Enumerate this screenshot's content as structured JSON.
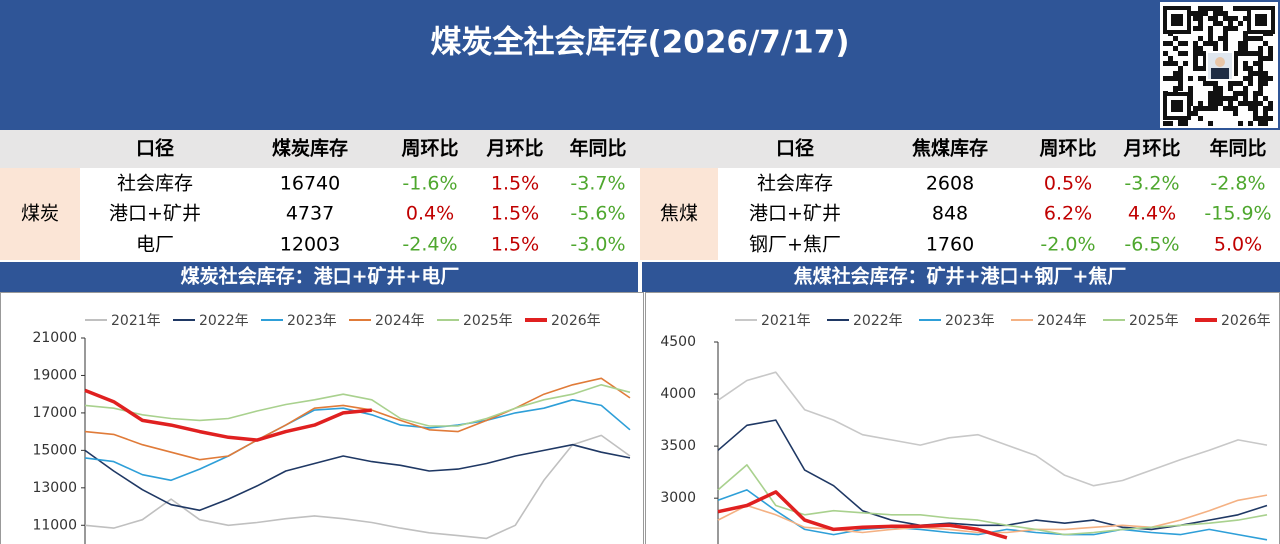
{
  "header": {
    "title": "煤炭全社会库存(2026/7/17)"
  },
  "tables": [
    {
      "group": "煤炭",
      "columns": [
        "口径",
        "煤炭库存",
        "周环比",
        "月环比",
        "年同比"
      ],
      "rows": [
        [
          "社会库存",
          "16740",
          "-1.6%",
          "1.5%",
          "-3.7%"
        ],
        [
          "港口+矿井",
          "4737",
          "0.4%",
          "1.5%",
          "-5.6%"
        ],
        [
          "电厂",
          "12003",
          "-2.4%",
          "1.5%",
          "-3.0%"
        ]
      ]
    },
    {
      "group": "焦煤",
      "columns": [
        "口径",
        "焦煤库存",
        "周环比",
        "月环比",
        "年同比"
      ],
      "rows": [
        [
          "社会库存",
          "2608",
          "0.5%",
          "-3.2%",
          "-2.8%"
        ],
        [
          "港口+矿井",
          "848",
          "6.2%",
          "4.4%",
          "-15.9%"
        ],
        [
          "钢厂+焦厂",
          "1760",
          "-2.0%",
          "-6.5%",
          "5.0%"
        ]
      ]
    }
  ],
  "chart_data": [
    {
      "type": "line",
      "title": "煤炭社会库存：港口+矿井+电厂",
      "ylim": [
        10000,
        21000
      ],
      "yticks": [
        11000,
        13000,
        15000,
        17000,
        19000,
        21000
      ],
      "series": [
        {
          "name": "2021年",
          "color": "#c0c0c0",
          "values": [
            11000,
            10850,
            11300,
            12400,
            11300,
            11000,
            11150,
            11350,
            11500,
            11350,
            11150,
            10850,
            10600,
            10450,
            10300,
            11000,
            13400,
            15300,
            15800,
            14700
          ]
        },
        {
          "name": "2022年",
          "color": "#1f3864",
          "values": [
            15000,
            13900,
            12900,
            12100,
            11800,
            12400,
            13100,
            13900,
            14300,
            14700,
            14400,
            14200,
            13900,
            14000,
            14300,
            14700,
            15000,
            15300,
            14900,
            14600
          ]
        },
        {
          "name": "2023年",
          "color": "#2e9fd8",
          "values": [
            14600,
            14400,
            13700,
            13400,
            14000,
            14700,
            15550,
            16350,
            17150,
            17250,
            16900,
            16350,
            16200,
            16350,
            16600,
            17000,
            17250,
            17700,
            17400,
            16100
          ]
        },
        {
          "name": "2024年",
          "color": "#e07b39",
          "values": [
            16000,
            15850,
            15300,
            14900,
            14500,
            14700,
            15550,
            16350,
            17250,
            17400,
            17150,
            16600,
            16100,
            16000,
            16600,
            17250,
            18000,
            18500,
            18850,
            17800
          ]
        },
        {
          "name": "2025年",
          "color": "#a9d18e",
          "values": [
            17400,
            17250,
            16900,
            16700,
            16600,
            16700,
            17100,
            17450,
            17700,
            18000,
            17700,
            16700,
            16300,
            16300,
            16700,
            17250,
            17700,
            18000,
            18500,
            18100
          ]
        },
        {
          "name": "2026年",
          "color": "#e02020",
          "values": [
            18200,
            17600,
            16600,
            16350,
            16000,
            15700,
            15550,
            16000,
            16350,
            17000,
            17150,
            null,
            null,
            null,
            null,
            null,
            null,
            null,
            null,
            null
          ]
        }
      ]
    },
    {
      "type": "line",
      "title": "焦煤社会库存：矿井+港口+钢厂+焦厂",
      "ylim": [
        2560,
        4500
      ],
      "yticks": [
        3000,
        3500,
        4000,
        4500
      ],
      "series": [
        {
          "name": "2021年",
          "color": "#c8c8c8",
          "values": [
            3940,
            4130,
            4210,
            3850,
            3750,
            3610,
            3560,
            3510,
            3580,
            3610,
            3510,
            3410,
            3220,
            3120,
            3170,
            3270,
            3370,
            3460,
            3560,
            3510
          ]
        },
        {
          "name": "2022年",
          "color": "#1f3864",
          "values": [
            3460,
            3700,
            3750,
            3270,
            3120,
            2880,
            2790,
            2740,
            2760,
            2740,
            2740,
            2790,
            2760,
            2790,
            2720,
            2700,
            2740,
            2790,
            2840,
            2930
          ]
        },
        {
          "name": "2023年",
          "color": "#2e9fd8",
          "values": [
            2980,
            3080,
            2880,
            2700,
            2650,
            2700,
            2720,
            2700,
            2670,
            2650,
            2700,
            2670,
            2650,
            2650,
            2700,
            2670,
            2650,
            2700,
            2650,
            2600
          ]
        },
        {
          "name": "2024年",
          "color": "#f4b183",
          "values": [
            2790,
            2930,
            2840,
            2720,
            2700,
            2670,
            2700,
            2720,
            2700,
            2670,
            2670,
            2700,
            2700,
            2720,
            2740,
            2720,
            2790,
            2880,
            2980,
            3030
          ]
        },
        {
          "name": "2025年",
          "color": "#a9d18e",
          "values": [
            3080,
            3320,
            2930,
            2840,
            2880,
            2860,
            2840,
            2840,
            2810,
            2790,
            2740,
            2700,
            2650,
            2670,
            2700,
            2720,
            2740,
            2760,
            2790,
            2840
          ]
        },
        {
          "name": "2026年",
          "color": "#e02020",
          "values": [
            2870,
            2930,
            3060,
            2790,
            2700,
            2720,
            2730,
            2730,
            2740,
            2700,
            2620,
            null,
            null,
            null,
            null,
            null,
            null,
            null,
            null,
            null
          ]
        }
      ]
    }
  ]
}
